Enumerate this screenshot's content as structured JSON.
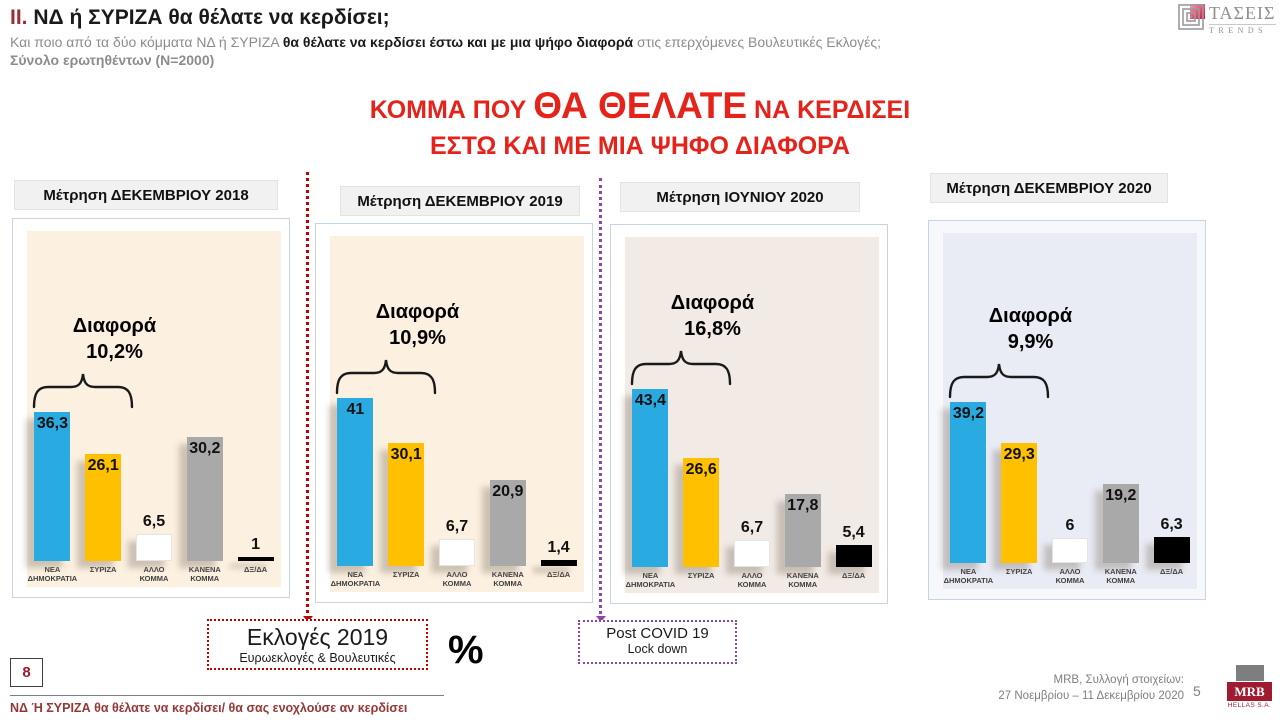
{
  "header": {
    "section": "II.",
    "title": " ΝΔ  ή ΣΥΡΙΖΑ θα θέλατε να κερδίσει;",
    "subtitle_pre": "Και ποιο από τα δύο κόμματα ΝΔ ή ΣΥΡΙΖΑ ",
    "subtitle_bold": "θα θέλατε να κερδίσει έστω και με μια ψήφο διαφορά",
    "subtitle_post": " στις επερχόμενες Βουλευτικές Εκλογές;",
    "sample": "Σύνολο ερωτηθέντων (N=2000)"
  },
  "brand": {
    "name": "ΤΑΣΕΙΣ",
    "sub": "TRENDS"
  },
  "main_title": {
    "pre": "ΚΟΜΜΑ ΠΟΥ ",
    "emphasis": "ΘΑ ΘΕΛΑΤΕ",
    "post": " ΝΑ ΚΕΡΔΙΣΕΙ",
    "line2": "ΕΣΤΩ ΚΑΙ ΜΕ ΜΙΑ ΨΗΦΟ ΔΙΑΦΟΡΑ"
  },
  "colors": {
    "bar_colors": [
      "#29ABE2",
      "#FFC000",
      "#FFFFFF",
      "#A9A9A9",
      "#000000"
    ],
    "title_red": "#E5231B",
    "maroon": "#9E1B32",
    "timeline_red": "#C00000",
    "timeline_purple": "#8E44AD"
  },
  "chart_data": [
    {
      "type": "bar",
      "title": "Μέτρηση ΔΕΚΕΜΒΡΙΟΥ 2018",
      "diff_label": "Διαφορά",
      "diff_value": "10,2%",
      "background": "#FCF0E0",
      "categories": [
        "ΝΕΑ ΔΗΜΟΚΡΑΤΙΑ",
        "ΣΥΡΙΖΑ",
        "ΑΛΛΟ ΚΟΜΜΑ",
        "ΚΑΝΕΝΑ ΚΟΜΜΑ",
        "ΔΞ/ΔΑ"
      ],
      "values": [
        36.3,
        26.1,
        6.5,
        30.2,
        1
      ],
      "value_labels": [
        "36,3",
        "26,1",
        "6,5",
        "30,2",
        "1"
      ],
      "ylim": [
        0,
        45
      ]
    },
    {
      "type": "bar",
      "title": "Μέτρηση ΔΕΚΕΜΒΡΙΟΥ 2019",
      "diff_label": "Διαφορά",
      "diff_value": "10,9%",
      "background": "#FCF0E0",
      "categories": [
        "ΝΕΑ ΔΗΜΟΚΡΑΤΙΑ",
        "ΣΥΡΙΖΑ",
        "ΑΛΛΟ ΚΟΜΜΑ",
        "ΚΑΝΕΝΑ ΚΟΜΜΑ",
        "ΔΞ/ΔΑ"
      ],
      "values": [
        41,
        30.1,
        6.7,
        20.9,
        1.4
      ],
      "value_labels": [
        "41",
        "30,1",
        "6,7",
        "20,9",
        "1,4"
      ],
      "ylim": [
        0,
        45
      ]
    },
    {
      "type": "bar",
      "title": "Μέτρηση ΙΟΥΝΙΟΥ 2020",
      "diff_label": "Διαφορά",
      "diff_value": "16,8%",
      "background": "#F2EAE4",
      "categories": [
        "ΝΕΑ ΔΗΜΟΚΡΑΤΙΑ",
        "ΣΥΡΙΖΑ",
        "ΑΛΛΟ ΚΟΜΜΑ",
        "ΚΑΝΕΝΑ ΚΟΜΜΑ",
        "ΔΞ/ΔΑ"
      ],
      "values": [
        43.4,
        26.6,
        6.7,
        17.8,
        5.4
      ],
      "value_labels": [
        "43,4",
        "26,6",
        "6,7",
        "17,8",
        "5,4"
      ],
      "ylim": [
        0,
        45
      ]
    },
    {
      "type": "bar",
      "title": "Μέτρηση ΔΕΚΕΜΒΡΙΟΥ 2020",
      "diff_label": "Διαφορά",
      "diff_value": "9,9%",
      "background": "#E9EBF5",
      "categories": [
        "ΝΕΑ ΔΗΜΟΚΡΑΤΙΑ",
        "ΣΥΡΙΖΑ",
        "ΑΛΛΟ ΚΟΜΜΑ",
        "ΚΑΝΕΝΑ ΚΟΜΜΑ",
        "ΔΞ/ΔΑ"
      ],
      "values": [
        39.2,
        29.3,
        6,
        19.2,
        6.3
      ],
      "value_labels": [
        "39,2",
        "29,3",
        "6",
        "19,2",
        "6,3"
      ],
      "ylim": [
        0,
        45
      ]
    }
  ],
  "annotations": {
    "elections": {
      "title": "Εκλογές 2019",
      "subtitle": "Ευρωεκλογές & Βουλευτικές"
    },
    "percent": "%",
    "covid": {
      "line1": "Post  COVID 19",
      "line2": "Lock down"
    }
  },
  "footer": {
    "page_box": "8",
    "note": "ΝΔ Ή ΣΥΡΙΖΑ θα θέλατε να κερδίσει/ θα σας ενοχλούσε αν κερδίσει",
    "source_line1": "MRB, Συλλογή στοιχείων:",
    "source_line2": "27 Νοεμβρίου – 11 Δεκεμβρίου 2020",
    "page": "5",
    "logo": {
      "name": "MRB",
      "sub": "HELLAS S.A."
    }
  }
}
